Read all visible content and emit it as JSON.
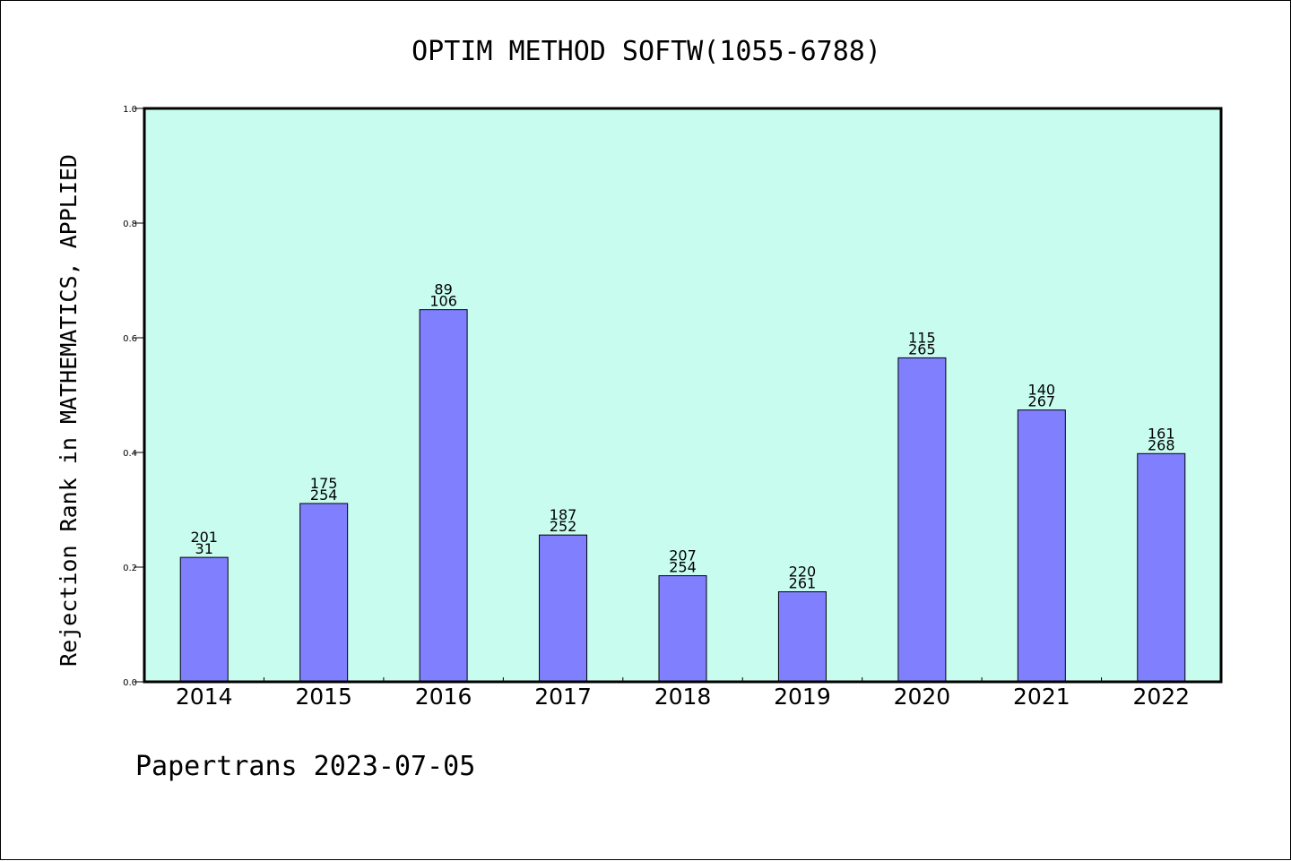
{
  "chart_data": {
    "type": "bar",
    "title": "OPTIM METHOD SOFTW(1055-6788)",
    "ylabel": "Rejection Rank in MATHEMATICS, APPLIED",
    "xlabel": "",
    "footer": "Papertrans 2023-07-05",
    "ylim": [
      0,
      1.0
    ],
    "yticks": [
      "0.0",
      "0.2",
      "0.4",
      "0.6",
      "0.8",
      "1.0"
    ],
    "grid": false,
    "colors": {
      "plot_bg": "#c8fcee",
      "bar": "#8080ff",
      "axis": "#000000"
    },
    "categories": [
      "2014",
      "2015",
      "2016",
      "2017",
      "2018",
      "2019",
      "2020",
      "2021",
      "2022"
    ],
    "values": [
      0.217,
      0.311,
      0.649,
      0.256,
      0.185,
      0.157,
      0.565,
      0.474,
      0.398
    ],
    "label_top": [
      "201",
      "175",
      "89",
      "187",
      "207",
      "220",
      "115",
      "140",
      "161"
    ],
    "label_bottom": [
      "31",
      "254",
      "106",
      "252",
      "254",
      "261",
      "265",
      "267",
      "268"
    ]
  }
}
